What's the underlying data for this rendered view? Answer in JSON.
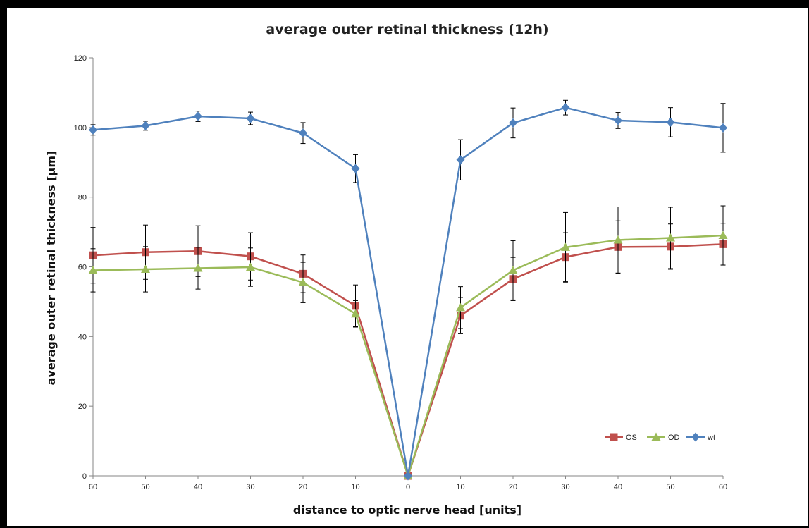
{
  "chart_data": {
    "type": "line",
    "title": "average outer retinal thickness (12h)",
    "xlabel": "distance to optic nerve head [units]",
    "ylabel": "average outer retinal thickness [µm]",
    "categories": [
      "60",
      "50",
      "40",
      "30",
      "20",
      "10",
      "0",
      "10",
      "20",
      "30",
      "40",
      "50",
      "60"
    ],
    "ylim": [
      0,
      120
    ],
    "yticks": [
      "0",
      "20",
      "40",
      "60",
      "80",
      "100",
      "120"
    ],
    "grid": false,
    "legend_position": "bottom-right",
    "series": [
      {
        "name": "OS",
        "color": "#c0504d",
        "marker": "square",
        "values": [
          63.3,
          64.2,
          64.5,
          63.0,
          58.0,
          48.8,
          0,
          46.0,
          56.5,
          62.8,
          65.7,
          65.8,
          66.5
        ],
        "error": [
          8.0,
          7.8,
          7.3,
          6.8,
          5.4,
          6.0,
          0,
          5.2,
          6.2,
          7.0,
          7.5,
          6.5,
          6.0
        ]
      },
      {
        "name": "OD",
        "color": "#9bbb59",
        "marker": "triangle",
        "values": [
          59.0,
          59.3,
          59.6,
          59.9,
          55.5,
          46.5,
          0,
          48.3,
          59.0,
          65.6,
          67.7,
          68.3,
          69.0
        ],
        "error": [
          6.2,
          6.5,
          6.0,
          5.5,
          5.8,
          3.8,
          0,
          6.0,
          8.5,
          10.0,
          9.5,
          8.8,
          8.5
        ]
      },
      {
        "name": "wt",
        "color": "#4f81bd",
        "marker": "diamond",
        "values": [
          99.3,
          100.5,
          103.2,
          102.6,
          98.4,
          88.2,
          0,
          90.7,
          101.3,
          105.7,
          102.0,
          101.5,
          99.9
        ],
        "error": [
          1.5,
          1.3,
          1.5,
          1.8,
          3.0,
          4.0,
          0,
          5.8,
          4.3,
          2.1,
          2.3,
          4.2,
          7.0
        ]
      }
    ]
  }
}
